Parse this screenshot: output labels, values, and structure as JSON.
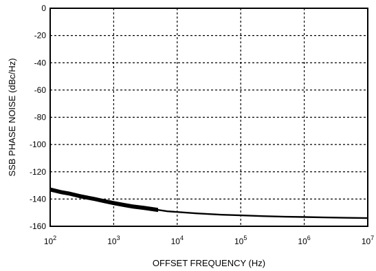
{
  "chart_data": {
    "type": "line",
    "title": "",
    "xlabel": "OFFSET FREQUENCY (Hz)",
    "ylabel": "SSB PHASE NOISE (dBc/Hz)",
    "x_scale": "log",
    "xlim": [
      100,
      10000000
    ],
    "ylim": [
      -160,
      0
    ],
    "grid": true,
    "x_ticks": [
      {
        "base": "10",
        "exp": "2"
      },
      {
        "base": "10",
        "exp": "3"
      },
      {
        "base": "10",
        "exp": "4"
      },
      {
        "base": "10",
        "exp": "5"
      },
      {
        "base": "10",
        "exp": "6"
      },
      {
        "base": "10",
        "exp": "7"
      }
    ],
    "y_ticks": [
      "0",
      "-20",
      "-40",
      "-60",
      "-80",
      "-100",
      "-120",
      "-140",
      "-160"
    ],
    "series": [
      {
        "color": "#000000",
        "x": [
          100,
          150,
          200,
          300,
          500,
          700,
          1000,
          1500,
          2000,
          3000,
          5000,
          7000,
          10000,
          20000,
          50000,
          100000,
          200000,
          500000,
          1000000,
          2000000,
          5000000,
          10000000
        ],
        "y": [
          -133,
          -135,
          -136,
          -138,
          -140,
          -141.5,
          -143,
          -144.5,
          -145.5,
          -146.5,
          -148,
          -149,
          -149.5,
          -150.5,
          -151.5,
          -152,
          -152.5,
          -153,
          -153.2,
          -153.5,
          -153.8,
          -154
        ]
      }
    ]
  }
}
